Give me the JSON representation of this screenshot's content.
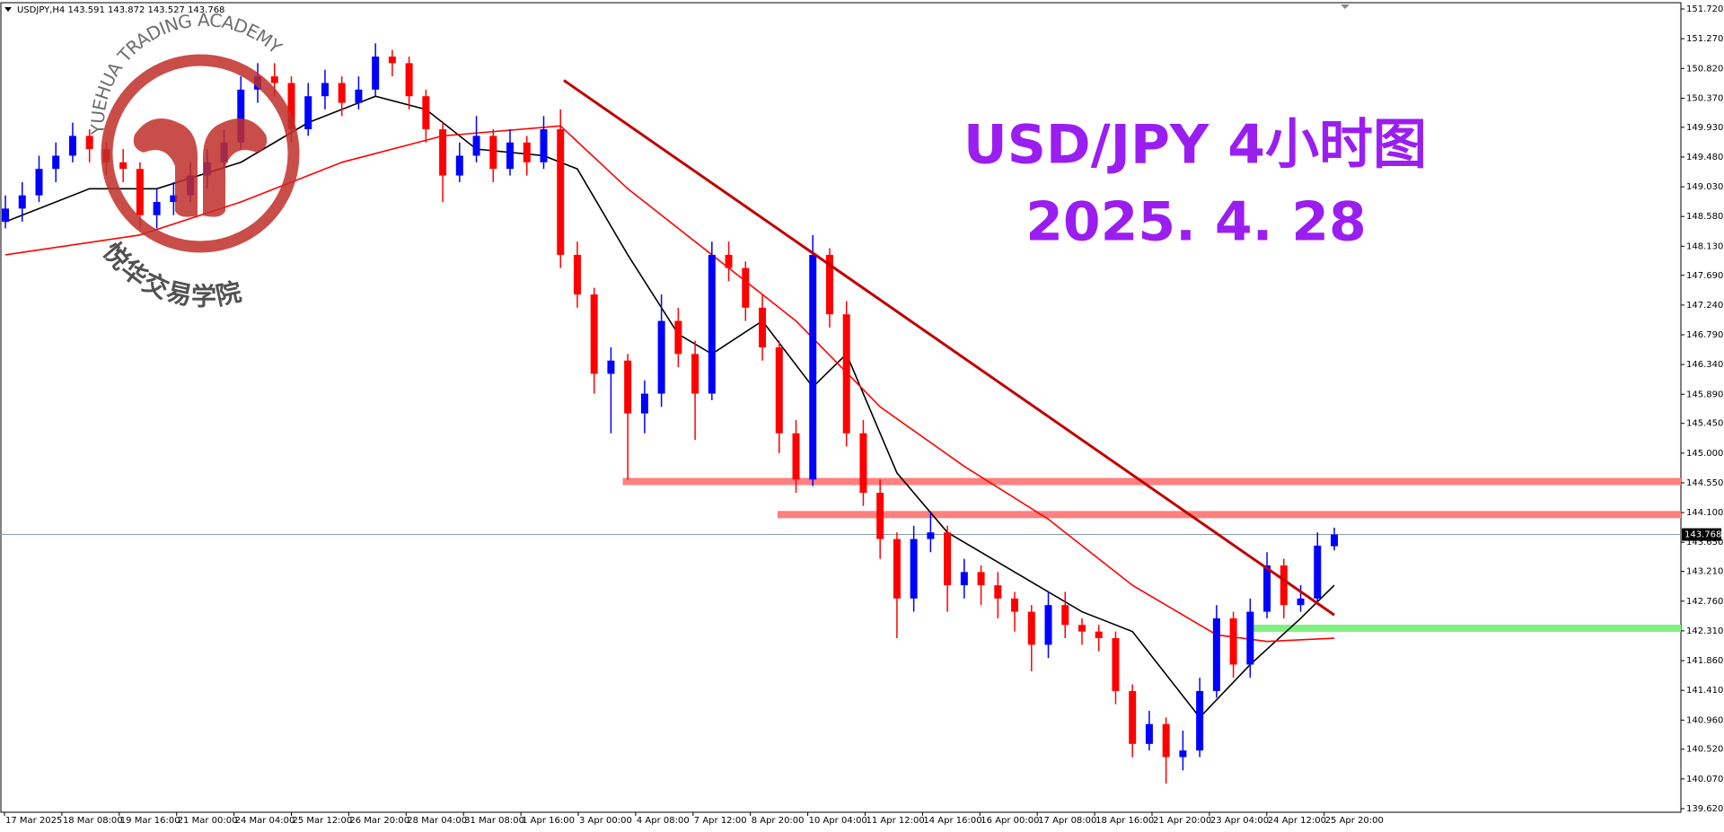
{
  "chart_data": {
    "type": "candlestick",
    "header": "USDJPY,H4  143.591 143.872 143.527 143.768",
    "title": "USD/JPY 4小时图",
    "subtitle": "2025. 4. 28",
    "watermark_top": "YUEHUA TRADING ACADEMY",
    "watermark_bottom": "悦华交易学院",
    "up_color": "#0000ff",
    "down_color": "#ff0000",
    "xlim": [
      0,
      79
    ],
    "ylim": [
      139.62,
      151.72
    ],
    "yticks": [
      {
        "value": 151.72,
        "label": "151.720"
      },
      {
        "value": 151.27,
        "label": "151.270"
      },
      {
        "value": 150.82,
        "label": "150.820"
      },
      {
        "value": 150.37,
        "label": "150.370"
      },
      {
        "value": 149.93,
        "label": "149.930"
      },
      {
        "value": 149.48,
        "label": "149.480"
      },
      {
        "value": 149.03,
        "label": "149.030"
      },
      {
        "value": 148.58,
        "label": "148.580"
      },
      {
        "value": 148.13,
        "label": "148.130"
      },
      {
        "value": 147.69,
        "label": "147.690"
      },
      {
        "value": 147.24,
        "label": "147.240"
      },
      {
        "value": 146.79,
        "label": "146.790"
      },
      {
        "value": 146.34,
        "label": "146.340"
      },
      {
        "value": 145.89,
        "label": "145.890"
      },
      {
        "value": 145.45,
        "label": "145.450"
      },
      {
        "value": 145,
        "label": "145.000"
      },
      {
        "value": 144.55,
        "label": "144.550"
      },
      {
        "value": 144.1,
        "label": "144.100"
      },
      {
        "value": 143.65,
        "label": "143.650"
      },
      {
        "value": 143.21,
        "label": "143.210"
      },
      {
        "value": 142.76,
        "label": "142.760"
      },
      {
        "value": 142.31,
        "label": "142.310"
      },
      {
        "value": 141.86,
        "label": "141.860"
      },
      {
        "value": 141.41,
        "label": "141.410"
      },
      {
        "value": 140.96,
        "label": "140.960"
      },
      {
        "value": 140.52,
        "label": "140.520"
      },
      {
        "value": 140.07,
        "label": "140.070"
      },
      {
        "value": 139.62,
        "label": "139.620"
      }
    ],
    "xlabels": [
      "17 Mar 2025",
      "18 Mar 08:00",
      "19 Mar 16:00",
      "21 Mar 00:00",
      "24 Mar 04:00",
      "25 Mar 12:00",
      "26 Mar 20:00",
      "28 Mar 04:00",
      "31 Mar 08:00",
      "1 Apr 16:00",
      "3 Apr 00:00",
      "4 Apr 08:00",
      "7 Apr 12:00",
      "8 Apr 20:00",
      "10 Apr 04:00",
      "11 Apr 12:00",
      "14 Apr 16:00",
      "16 Apr 00:00",
      "17 Apr 08:00",
      "18 Apr 16:00",
      "21 Apr 20:00",
      "23 Apr 04:00",
      "24 Apr 12:00",
      "25 Apr 20:00"
    ],
    "last_price": 143.768,
    "candles": [
      [
        148.5,
        148.9,
        148.4,
        148.7
      ],
      [
        148.7,
        149.1,
        148.5,
        148.9
      ],
      [
        148.9,
        149.5,
        148.8,
        149.3
      ],
      [
        149.3,
        149.7,
        149.1,
        149.5
      ],
      [
        149.5,
        150.0,
        149.4,
        149.8
      ],
      [
        149.8,
        149.9,
        149.4,
        149.6
      ],
      [
        149.6,
        149.7,
        149.2,
        149.4
      ],
      [
        149.4,
        149.6,
        149.1,
        149.3
      ],
      [
        149.3,
        149.4,
        148.4,
        148.6
      ],
      [
        148.6,
        149.0,
        148.4,
        148.8
      ],
      [
        148.8,
        149.1,
        148.6,
        148.9
      ],
      [
        148.9,
        149.4,
        148.8,
        149.2
      ],
      [
        149.2,
        149.6,
        149.0,
        149.4
      ],
      [
        149.4,
        149.9,
        149.3,
        149.7
      ],
      [
        149.7,
        150.7,
        149.6,
        150.5
      ],
      [
        150.5,
        150.9,
        150.3,
        150.7
      ],
      [
        150.7,
        150.9,
        150.4,
        150.6
      ],
      [
        150.6,
        150.7,
        149.7,
        149.9
      ],
      [
        149.9,
        150.6,
        149.8,
        150.4
      ],
      [
        150.4,
        150.8,
        150.2,
        150.6
      ],
      [
        150.6,
        150.7,
        150.1,
        150.3
      ],
      [
        150.3,
        150.7,
        150.2,
        150.5
      ],
      [
        150.5,
        151.2,
        150.4,
        151.0
      ],
      [
        151.0,
        151.1,
        150.7,
        150.9
      ],
      [
        150.9,
        151.0,
        150.2,
        150.4
      ],
      [
        150.4,
        150.5,
        149.7,
        149.9
      ],
      [
        149.9,
        150.0,
        148.8,
        149.2
      ],
      [
        149.2,
        149.7,
        149.1,
        149.5
      ],
      [
        149.5,
        150.1,
        149.4,
        149.8
      ],
      [
        149.8,
        149.9,
        149.1,
        149.3
      ],
      [
        149.3,
        149.9,
        149.2,
        149.7
      ],
      [
        149.7,
        149.8,
        149.2,
        149.4
      ],
      [
        149.4,
        150.1,
        149.3,
        149.9
      ],
      [
        149.9,
        150.2,
        147.8,
        148.0
      ],
      [
        148.0,
        148.2,
        147.2,
        147.4
      ],
      [
        147.4,
        147.5,
        145.9,
        146.2
      ],
      [
        146.2,
        146.6,
        145.3,
        146.4
      ],
      [
        146.4,
        146.5,
        144.6,
        145.6
      ],
      [
        145.6,
        146.1,
        145.3,
        145.9
      ],
      [
        145.9,
        147.4,
        145.7,
        147.0
      ],
      [
        147.0,
        147.2,
        146.3,
        146.5
      ],
      [
        146.5,
        146.7,
        145.2,
        145.9
      ],
      [
        145.9,
        148.2,
        145.8,
        148.0
      ],
      [
        148.0,
        148.2,
        147.6,
        147.8
      ],
      [
        147.8,
        147.9,
        147.0,
        147.2
      ],
      [
        147.2,
        147.4,
        146.4,
        146.6
      ],
      [
        146.6,
        146.7,
        145.0,
        145.3
      ],
      [
        145.3,
        145.5,
        144.4,
        144.6
      ],
      [
        144.6,
        148.3,
        144.5,
        148.0
      ],
      [
        148.0,
        148.1,
        146.9,
        147.1
      ],
      [
        147.1,
        147.3,
        145.1,
        145.3
      ],
      [
        145.3,
        145.5,
        144.2,
        144.4
      ],
      [
        144.4,
        144.6,
        143.4,
        143.7
      ],
      [
        143.7,
        143.8,
        142.2,
        142.8
      ],
      [
        142.8,
        143.9,
        142.6,
        143.7
      ],
      [
        143.7,
        144.1,
        143.5,
        143.8
      ],
      [
        143.8,
        143.9,
        142.6,
        143.0
      ],
      [
        143.0,
        143.4,
        142.8,
        143.2
      ],
      [
        143.2,
        143.3,
        142.7,
        143.0
      ],
      [
        143.0,
        143.2,
        142.5,
        142.8
      ],
      [
        142.8,
        142.9,
        142.3,
        142.6
      ],
      [
        142.6,
        142.7,
        141.7,
        142.1
      ],
      [
        142.1,
        142.9,
        141.9,
        142.7
      ],
      [
        142.7,
        142.9,
        142.2,
        142.4
      ],
      [
        142.4,
        142.5,
        142.1,
        142.3
      ],
      [
        142.3,
        142.4,
        142.0,
        142.2
      ],
      [
        142.2,
        142.3,
        141.2,
        141.4
      ],
      [
        141.4,
        141.5,
        140.4,
        140.6
      ],
      [
        140.6,
        141.1,
        140.5,
        140.9
      ],
      [
        140.9,
        141.0,
        140.0,
        140.4
      ],
      [
        140.4,
        140.8,
        140.2,
        140.5
      ],
      [
        140.5,
        141.6,
        140.4,
        141.4
      ],
      [
        141.4,
        142.7,
        141.3,
        142.5
      ],
      [
        142.5,
        142.6,
        141.6,
        141.8
      ],
      [
        141.8,
        142.8,
        141.6,
        142.6
      ],
      [
        142.6,
        143.5,
        142.5,
        143.3
      ],
      [
        143.3,
        143.4,
        142.5,
        142.7
      ],
      [
        142.7,
        143.0,
        142.6,
        142.8
      ],
      [
        142.8,
        143.8,
        142.7,
        143.6
      ],
      [
        143.591,
        143.872,
        143.527,
        143.768
      ]
    ],
    "lines": [
      {
        "color": "#000000",
        "x": [
          0,
          5,
          9,
          14,
          18,
          22,
          25,
          28,
          32,
          34,
          37,
          40,
          42,
          45,
          48,
          50,
          53,
          56,
          60,
          64,
          67,
          71,
          74,
          77,
          79
        ],
        "values": [
          148.5,
          149.0,
          149.0,
          149.4,
          150.0,
          150.4,
          150.2,
          149.6,
          149.5,
          149.3,
          148.0,
          146.8,
          146.5,
          147.0,
          146.0,
          146.5,
          144.7,
          143.8,
          143.2,
          142.6,
          142.3,
          141.0,
          141.8,
          142.5,
          143.0
        ]
      },
      {
        "color": "#ff0000",
        "x": [
          0,
          8,
          14,
          20,
          26,
          33,
          37,
          42,
          47,
          52,
          57,
          62,
          67,
          72,
          75,
          79
        ],
        "values": [
          148.0,
          148.3,
          148.8,
          149.4,
          149.8,
          149.95,
          149.0,
          148.0,
          147.0,
          145.7,
          144.8,
          144.0,
          143.0,
          142.25,
          142.15,
          142.2
        ]
      }
    ],
    "trendline": {
      "color": "#c00000",
      "x": [
        33.2,
        79
      ],
      "values": [
        150.64,
        142.55
      ]
    },
    "levels": [
      {
        "value": 144.57,
        "x_start": 36.7,
        "color": "#ff8080"
      },
      {
        "value": 144.07,
        "x_start": 45.9,
        "color": "#ff8080"
      },
      {
        "value": 142.35,
        "x_start": 74,
        "color": "#80f080"
      }
    ]
  }
}
